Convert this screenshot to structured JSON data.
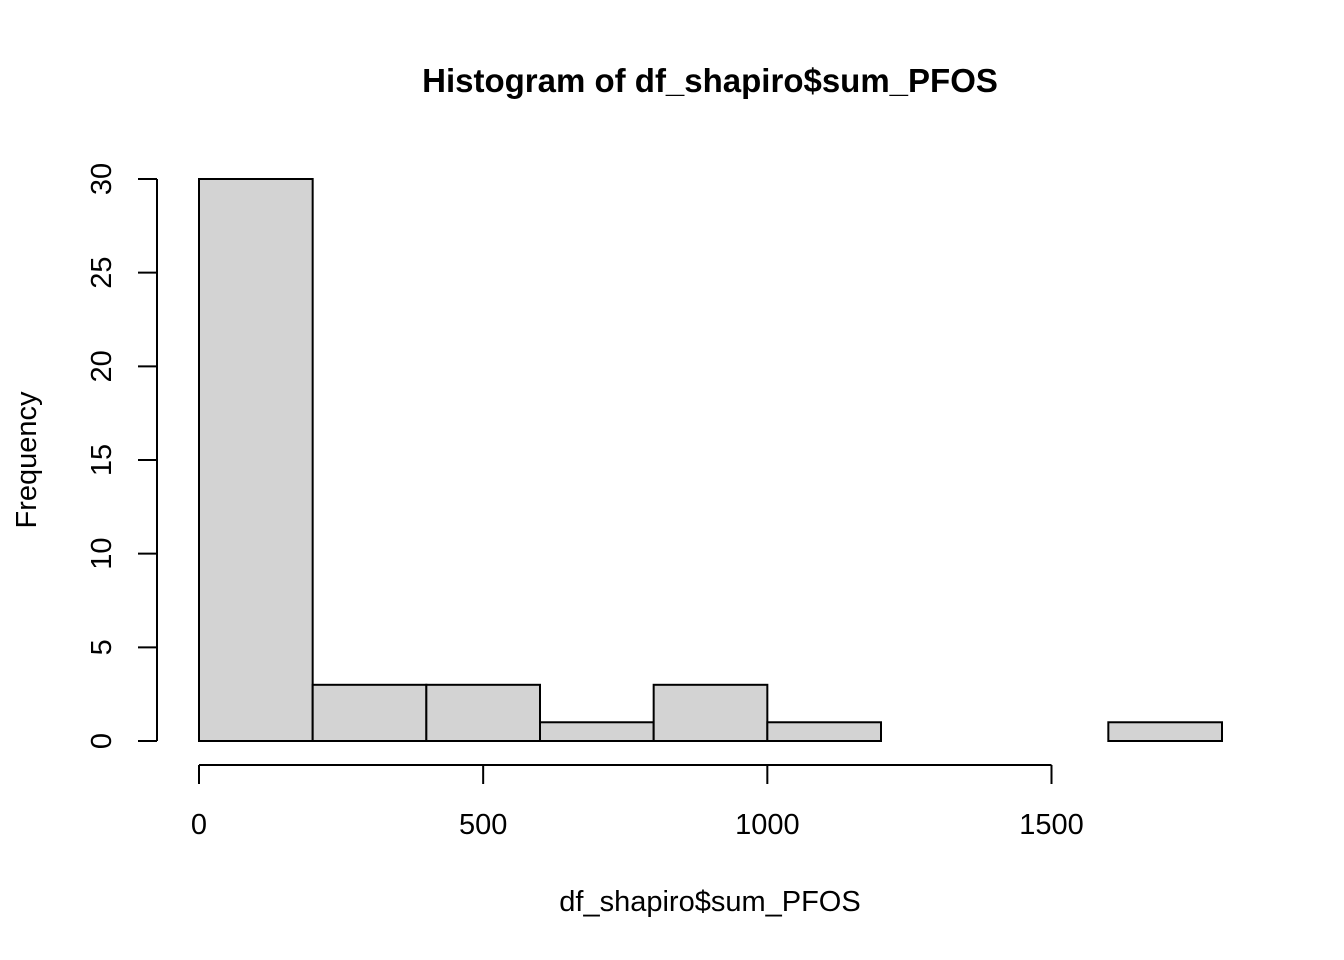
{
  "chart_data": {
    "type": "bar",
    "title": "Histogram of df_shapiro$sum_PFOS",
    "xlabel": "df_shapiro$sum_PFOS",
    "ylabel": "Frequency",
    "bins": [
      {
        "start": 0,
        "end": 200,
        "count": 30
      },
      {
        "start": 200,
        "end": 400,
        "count": 3
      },
      {
        "start": 400,
        "end": 600,
        "count": 3
      },
      {
        "start": 600,
        "end": 800,
        "count": 1
      },
      {
        "start": 800,
        "end": 1000,
        "count": 3
      },
      {
        "start": 1000,
        "end": 1200,
        "count": 1
      },
      {
        "start": 1200,
        "end": 1400,
        "count": 0
      },
      {
        "start": 1400,
        "end": 1600,
        "count": 0
      },
      {
        "start": 1600,
        "end": 1800,
        "count": 1
      }
    ],
    "xlim": [
      0,
      1800
    ],
    "ylim": [
      0,
      30
    ],
    "x_ticks": [
      0,
      500,
      1000,
      1500
    ],
    "x_tick_labels": [
      "0",
      "500",
      "1000",
      "1500"
    ],
    "y_ticks": [
      0,
      5,
      10,
      15,
      20,
      25,
      30
    ],
    "y_tick_labels": [
      "0",
      "5",
      "10",
      "15",
      "20",
      "25",
      "30"
    ],
    "grid": false,
    "colors": {
      "bar_fill": "#d3d3d3",
      "bar_stroke": "#000000"
    }
  }
}
